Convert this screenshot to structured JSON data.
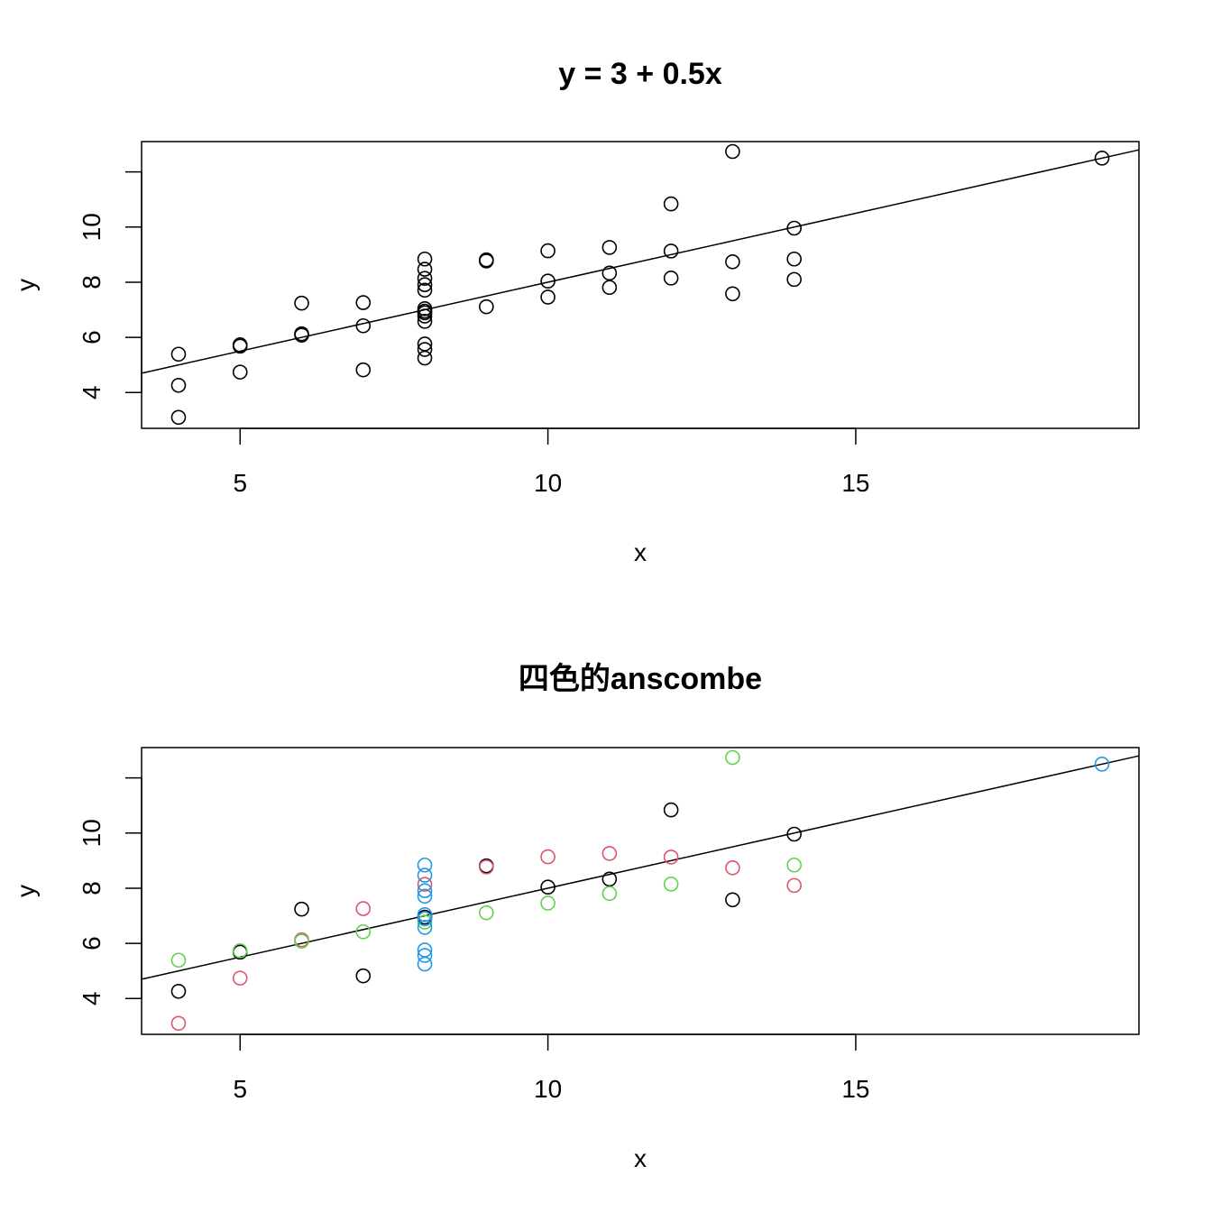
{
  "chart_data": [
    {
      "type": "scatter",
      "title": "y = 3 + 0.5x",
      "xlabel": "x",
      "ylabel": "y",
      "xlim": [
        3.4,
        19.6
      ],
      "ylim": [
        2.7,
        13.1
      ],
      "xticks": [
        5,
        10,
        15
      ],
      "yticks": [
        4,
        6,
        8,
        10,
        12
      ],
      "ytick_labels": [
        "4",
        "6",
        "8",
        "10",
        ""
      ],
      "grid": false,
      "fit_line": {
        "intercept": 3,
        "slope": 0.5
      },
      "series": [
        {
          "color": "#000000",
          "points": [
            [
              10,
              8.04
            ],
            [
              8,
              6.95
            ],
            [
              13,
              7.58
            ],
            [
              9,
              8.81
            ],
            [
              11,
              8.33
            ],
            [
              14,
              9.96
            ],
            [
              6,
              7.24
            ],
            [
              4,
              4.26
            ],
            [
              12,
              10.84
            ],
            [
              7,
              4.82
            ],
            [
              5,
              5.68
            ]
          ]
        },
        {
          "color": "#000000",
          "points": [
            [
              10,
              9.14
            ],
            [
              8,
              8.14
            ],
            [
              13,
              8.74
            ],
            [
              9,
              8.77
            ],
            [
              11,
              9.26
            ],
            [
              14,
              8.1
            ],
            [
              6,
              6.13
            ],
            [
              4,
              3.1
            ],
            [
              12,
              9.13
            ],
            [
              7,
              7.26
            ],
            [
              5,
              4.74
            ]
          ]
        },
        {
          "color": "#000000",
          "points": [
            [
              10,
              7.46
            ],
            [
              8,
              6.77
            ],
            [
              13,
              12.74
            ],
            [
              9,
              7.11
            ],
            [
              11,
              7.81
            ],
            [
              14,
              8.84
            ],
            [
              6,
              6.08
            ],
            [
              4,
              5.39
            ],
            [
              12,
              8.15
            ],
            [
              7,
              6.42
            ],
            [
              5,
              5.73
            ]
          ]
        },
        {
          "color": "#000000",
          "points": [
            [
              8,
              6.58
            ],
            [
              8,
              5.76
            ],
            [
              8,
              7.71
            ],
            [
              8,
              8.84
            ],
            [
              8,
              8.47
            ],
            [
              8,
              7.04
            ],
            [
              8,
              5.25
            ],
            [
              19,
              12.5
            ],
            [
              8,
              5.56
            ],
            [
              8,
              7.91
            ],
            [
              8,
              6.89
            ]
          ]
        }
      ]
    },
    {
      "type": "scatter",
      "title": "四色的anscombe",
      "xlabel": "x",
      "ylabel": "y",
      "xlim": [
        3.4,
        19.6
      ],
      "ylim": [
        2.7,
        13.1
      ],
      "xticks": [
        5,
        10,
        15
      ],
      "yticks": [
        4,
        6,
        8,
        10,
        12
      ],
      "ytick_labels": [
        "4",
        "6",
        "8",
        "10",
        ""
      ],
      "grid": false,
      "fit_line": {
        "intercept": 3,
        "slope": 0.5
      },
      "series": [
        {
          "color": "#000000",
          "points": [
            [
              10,
              8.04
            ],
            [
              8,
              6.95
            ],
            [
              13,
              7.58
            ],
            [
              9,
              8.81
            ],
            [
              11,
              8.33
            ],
            [
              14,
              9.96
            ],
            [
              6,
              7.24
            ],
            [
              4,
              4.26
            ],
            [
              12,
              10.84
            ],
            [
              7,
              4.82
            ],
            [
              5,
              5.68
            ]
          ]
        },
        {
          "color": "#DF536B",
          "points": [
            [
              10,
              9.14
            ],
            [
              8,
              8.14
            ],
            [
              13,
              8.74
            ],
            [
              9,
              8.77
            ],
            [
              11,
              9.26
            ],
            [
              14,
              8.1
            ],
            [
              6,
              6.13
            ],
            [
              4,
              3.1
            ],
            [
              12,
              9.13
            ],
            [
              7,
              7.26
            ],
            [
              5,
              4.74
            ]
          ]
        },
        {
          "color": "#61D04F",
          "points": [
            [
              10,
              7.46
            ],
            [
              8,
              6.77
            ],
            [
              13,
              12.74
            ],
            [
              9,
              7.11
            ],
            [
              11,
              7.81
            ],
            [
              14,
              8.84
            ],
            [
              6,
              6.08
            ],
            [
              4,
              5.39
            ],
            [
              12,
              8.15
            ],
            [
              7,
              6.42
            ],
            [
              5,
              5.73
            ]
          ]
        },
        {
          "color": "#2297E6",
          "points": [
            [
              8,
              6.58
            ],
            [
              8,
              5.76
            ],
            [
              8,
              7.71
            ],
            [
              8,
              8.84
            ],
            [
              8,
              8.47
            ],
            [
              8,
              7.04
            ],
            [
              8,
              5.25
            ],
            [
              19,
              12.5
            ],
            [
              8,
              5.56
            ],
            [
              8,
              7.91
            ],
            [
              8,
              6.89
            ]
          ]
        }
      ]
    }
  ]
}
